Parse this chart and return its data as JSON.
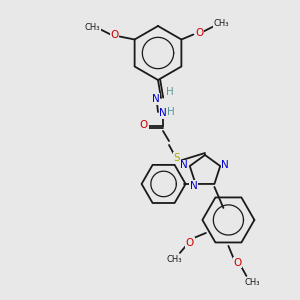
{
  "bg_color": "#e8e8e8",
  "atom_colors": {
    "C": "#1a1a1a",
    "H": "#5a9a9a",
    "N": "#0000cc",
    "O": "#cc0000",
    "S": "#aaaa00"
  },
  "bond_color": "#1a1a1a",
  "figsize": [
    3.0,
    3.0
  ],
  "dpi": 100,
  "xlim": [
    0,
    300
  ],
  "ylim": [
    0,
    300
  ]
}
